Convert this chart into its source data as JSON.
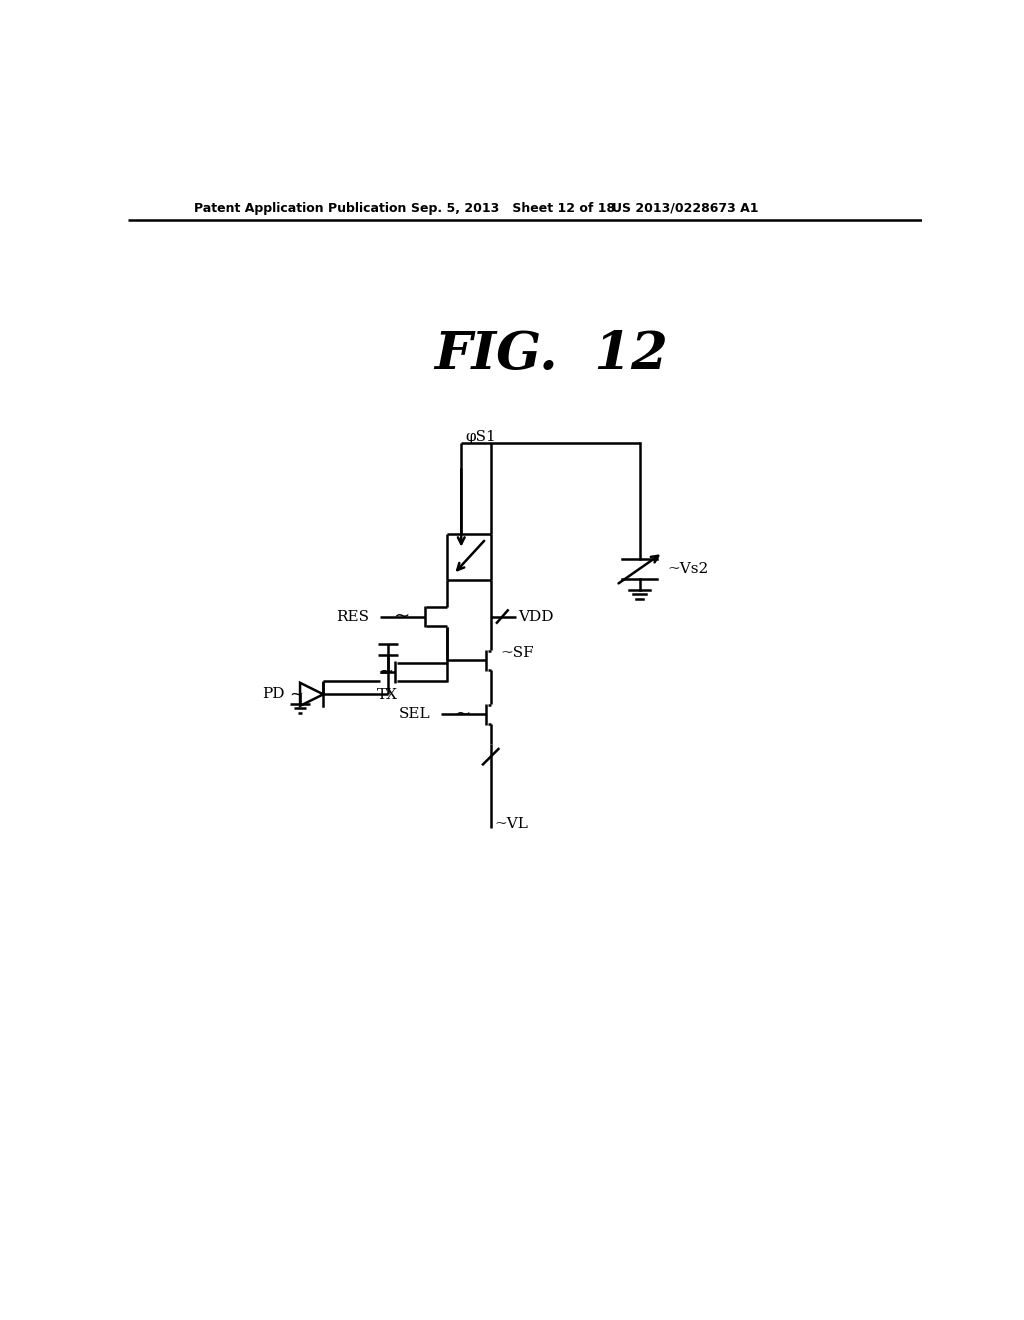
{
  "background": "#ffffff",
  "line_color": "#000000",
  "header_left": "Patent Application Publication",
  "header_mid": "Sep. 5, 2013   Sheet 12 of 18",
  "header_right": "US 2013/0228673 A1",
  "fig_title": "FIG.  12"
}
